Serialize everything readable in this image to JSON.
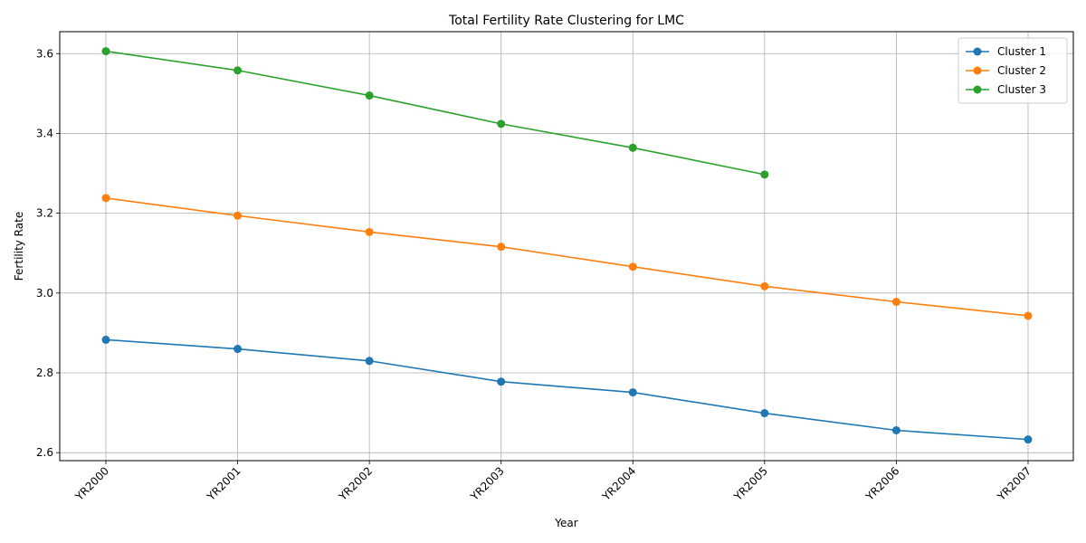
{
  "chart_data": {
    "type": "line",
    "title": "Total Fertility Rate Clustering for LMC",
    "xlabel": "Year",
    "ylabel": "Fertility Rate",
    "categories": [
      "YR2000",
      "YR2001",
      "YR2002",
      "YR2003",
      "YR2004",
      "YR2005",
      "YR2006",
      "YR2007"
    ],
    "ylim": [
      2.58,
      3.655
    ],
    "yticks": [
      2.6,
      2.8,
      3.0,
      3.2,
      3.4,
      3.6
    ],
    "ytick_labels": [
      "2.6",
      "2.8",
      "3.0",
      "3.2",
      "3.4",
      "3.6"
    ],
    "grid": true,
    "legend_position": "top-right",
    "series": [
      {
        "name": "Cluster 1",
        "color": "#1f77b4",
        "values": [
          2.883,
          2.86,
          2.83,
          2.778,
          2.751,
          2.699,
          2.656,
          2.633
        ]
      },
      {
        "name": "Cluster 2",
        "color": "#ff7f0e",
        "values": [
          3.238,
          3.194,
          3.153,
          3.116,
          3.066,
          3.017,
          2.978,
          2.943
        ]
      },
      {
        "name": "Cluster 3",
        "color": "#2ca02c",
        "values": [
          3.606,
          3.558,
          3.495,
          3.424,
          3.364,
          3.297,
          null,
          null
        ]
      }
    ]
  }
}
